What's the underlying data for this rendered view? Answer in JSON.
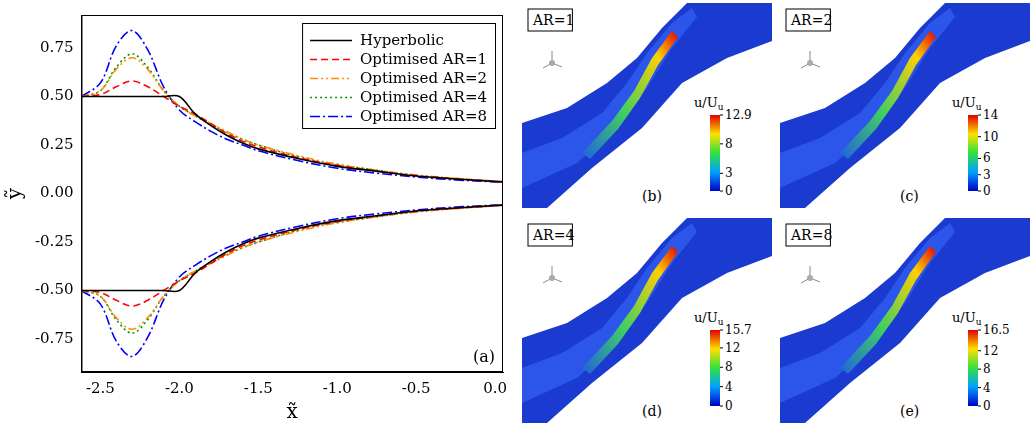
{
  "chart_data": {
    "type": "line",
    "x_label": "x̃",
    "y_label": "ỹ",
    "annotation": "(a)",
    "x": [
      -2.62,
      -2.5,
      -2.4,
      -2.3,
      -2.2,
      -2.1,
      -2.0,
      -1.9,
      -1.8,
      -1.7,
      -1.6,
      -1.5,
      -1.25,
      -1.0,
      -0.75,
      -0.5,
      -0.25,
      0.0,
      0.05,
      null,
      -2.62,
      -2.5,
      -2.4,
      -2.3,
      -2.2,
      -2.1,
      -2.0,
      -1.9,
      -1.8,
      -1.7,
      -1.6,
      -1.5,
      -1.25,
      -1.0,
      -0.75,
      -0.5,
      -0.25,
      0.0,
      0.05
    ],
    "series": [
      {
        "name": "Hyperbolic",
        "color": "#000000",
        "line_style": "solid",
        "values": [
          0.5,
          0.5,
          0.5,
          0.5,
          0.5,
          0.5,
          0.5,
          0.41,
          0.35,
          0.3,
          0.26,
          0.23,
          0.18,
          0.14,
          0.115,
          0.09,
          0.075,
          0.062,
          0.06,
          null,
          -0.5,
          -0.5,
          -0.5,
          -0.5,
          -0.5,
          -0.5,
          -0.5,
          -0.41,
          -0.35,
          -0.3,
          -0.26,
          -0.23,
          -0.18,
          -0.14,
          -0.115,
          -0.09,
          -0.075,
          -0.062,
          -0.06
        ]
      },
      {
        "name": "Optimised AR=1",
        "color": "#ff0000",
        "line_style": "dashed",
        "values": [
          0.5,
          0.51,
          0.55,
          0.58,
          0.55,
          0.5,
          0.45,
          0.41,
          0.36,
          0.31,
          0.27,
          0.24,
          0.185,
          0.145,
          0.115,
          0.092,
          0.076,
          0.063,
          0.06,
          null,
          -0.5,
          -0.51,
          -0.55,
          -0.58,
          -0.55,
          -0.5,
          -0.45,
          -0.41,
          -0.36,
          -0.31,
          -0.27,
          -0.24,
          -0.185,
          -0.145,
          -0.115,
          -0.092,
          -0.076,
          -0.063,
          -0.06
        ]
      },
      {
        "name": "Optimised AR=2",
        "color": "#ff8c00",
        "line_style": "dash_dot_dot",
        "values": [
          0.5,
          0.53,
          0.64,
          0.7,
          0.64,
          0.53,
          0.45,
          0.4,
          0.36,
          0.32,
          0.28,
          0.25,
          0.195,
          0.15,
          0.12,
          0.095,
          0.078,
          0.064,
          0.06,
          null,
          -0.5,
          -0.53,
          -0.64,
          -0.7,
          -0.64,
          -0.53,
          -0.45,
          -0.4,
          -0.36,
          -0.32,
          -0.28,
          -0.25,
          -0.195,
          -0.15,
          -0.12,
          -0.095,
          -0.078,
          -0.064,
          -0.06
        ]
      },
      {
        "name": "Optimised AR=4",
        "color": "#009900",
        "line_style": "dotted",
        "values": [
          0.5,
          0.53,
          0.65,
          0.72,
          0.65,
          0.53,
          0.45,
          0.4,
          0.355,
          0.315,
          0.28,
          0.25,
          0.19,
          0.15,
          0.12,
          0.094,
          0.077,
          0.064,
          0.06,
          null,
          -0.5,
          -0.53,
          -0.65,
          -0.72,
          -0.65,
          -0.53,
          -0.45,
          -0.4,
          -0.355,
          -0.315,
          -0.28,
          -0.25,
          -0.19,
          -0.15,
          -0.12,
          -0.094,
          -0.077,
          -0.064,
          -0.06
        ]
      },
      {
        "name": "Optimised AR=8",
        "color": "#0000ff",
        "line_style": "dash_dot",
        "values": [
          0.5,
          0.57,
          0.76,
          0.84,
          0.74,
          0.55,
          0.43,
          0.37,
          0.32,
          0.28,
          0.25,
          0.22,
          0.17,
          0.13,
          0.105,
          0.085,
          0.07,
          0.06,
          0.058,
          null,
          -0.5,
          -0.57,
          -0.76,
          -0.84,
          -0.74,
          -0.55,
          -0.43,
          -0.37,
          -0.32,
          -0.28,
          -0.25,
          -0.22,
          -0.17,
          -0.13,
          -0.105,
          -0.085,
          -0.07,
          -0.06,
          -0.058
        ]
      }
    ],
    "xlim": [
      -2.62,
      0.05
    ],
    "ylim": [
      -0.92,
      0.92
    ],
    "xticks": [
      -2.5,
      {
        "value": -2,
        "label": "-2.0"
      },
      -1.5,
      {
        "value": -1,
        "label": "-1.0"
      },
      -0.5,
      {
        "value": 0,
        "label": "0.0"
      }
    ],
    "yticks": [
      -0.75,
      {
        "value": -0.5,
        "label": "-0.50"
      },
      -0.25,
      {
        "value": 0,
        "label": "0.00"
      },
      0.25,
      {
        "value": 0.5,
        "label": "0.50"
      },
      0.75
    ],
    "grid": false,
    "legend": "upper right"
  },
  "panels": [
    {
      "title": "AR=1",
      "letter": "(b)",
      "colorbar_title": "u/U",
      "colorbar_title_sub": "u",
      "colorbar_range": [
        0,
        12.9
      ],
      "colorbar_ticks": [
        0,
        3,
        8,
        12.9
      ]
    },
    {
      "title": "AR=2",
      "letter": "(c)",
      "colorbar_title": "u/U",
      "colorbar_title_sub": "u",
      "colorbar_range": [
        0,
        14
      ],
      "colorbar_ticks": [
        0,
        3,
        6,
        10,
        14
      ]
    },
    {
      "title": "AR=4",
      "letter": "(d)",
      "colorbar_title": "u/U",
      "colorbar_title_sub": "u",
      "colorbar_range": [
        0,
        15.7
      ],
      "colorbar_ticks": [
        0,
        4,
        8,
        12,
        15.7
      ]
    },
    {
      "title": "AR=8",
      "letter": "(e)",
      "colorbar_title": "u/U",
      "colorbar_title_sub": "u",
      "colorbar_range": [
        0,
        16.5
      ],
      "colorbar_ticks": [
        0,
        4,
        8,
        12,
        16.5
      ]
    }
  ]
}
